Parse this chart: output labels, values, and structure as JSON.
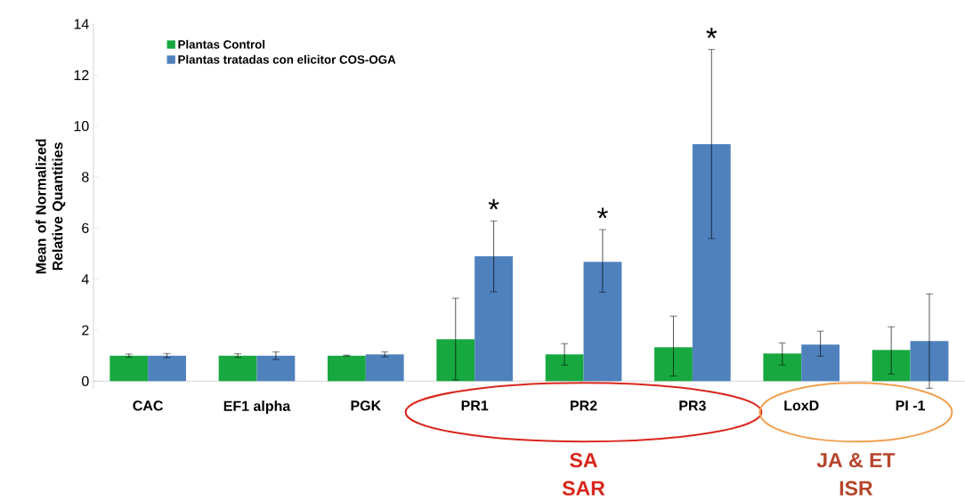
{
  "chart_data": {
    "type": "bar",
    "ylabel": "Mean of Normalized Relative Quantities",
    "categories": [
      "CAC",
      "EF1 alpha",
      "PGK",
      "PR1",
      "PR2",
      "PR3",
      "LoxD",
      "PI -1"
    ],
    "series": [
      {
        "name": "Plantas Control",
        "color": "#17a840",
        "values": [
          1.0,
          1.0,
          1.0,
          1.64,
          1.05,
          1.33,
          1.08,
          1.22
        ],
        "errors": [
          [
            0.94,
            1.06
          ],
          [
            0.93,
            1.07
          ],
          [
            0.98,
            1.02
          ],
          [
            0.05,
            3.25
          ],
          [
            0.63,
            1.47
          ],
          [
            0.2,
            2.55
          ],
          [
            0.63,
            1.5
          ],
          [
            0.28,
            2.13
          ]
        ]
      },
      {
        "name": "Plantas tratadas con elicitor COS-OGA",
        "color": "#4f81bd",
        "values": [
          1.0,
          1.0,
          1.05,
          4.89,
          4.68,
          9.29,
          1.43,
          1.57
        ],
        "errors": [
          [
            0.92,
            1.08
          ],
          [
            0.85,
            1.15
          ],
          [
            0.95,
            1.15
          ],
          [
            3.5,
            6.28
          ],
          [
            3.49,
            5.94
          ],
          [
            5.59,
            13.0
          ],
          [
            0.98,
            1.96
          ],
          [
            -0.28,
            3.42
          ]
        ]
      }
    ],
    "ylim": [
      -0.3,
      14
    ],
    "yticks": [
      0,
      2,
      4,
      6,
      8,
      10,
      12,
      14
    ],
    "legend": "top left",
    "annotations": [
      "*",
      "*",
      "*",
      "SA",
      "SAR",
      "JA & ET",
      "ISR"
    ]
  }
}
